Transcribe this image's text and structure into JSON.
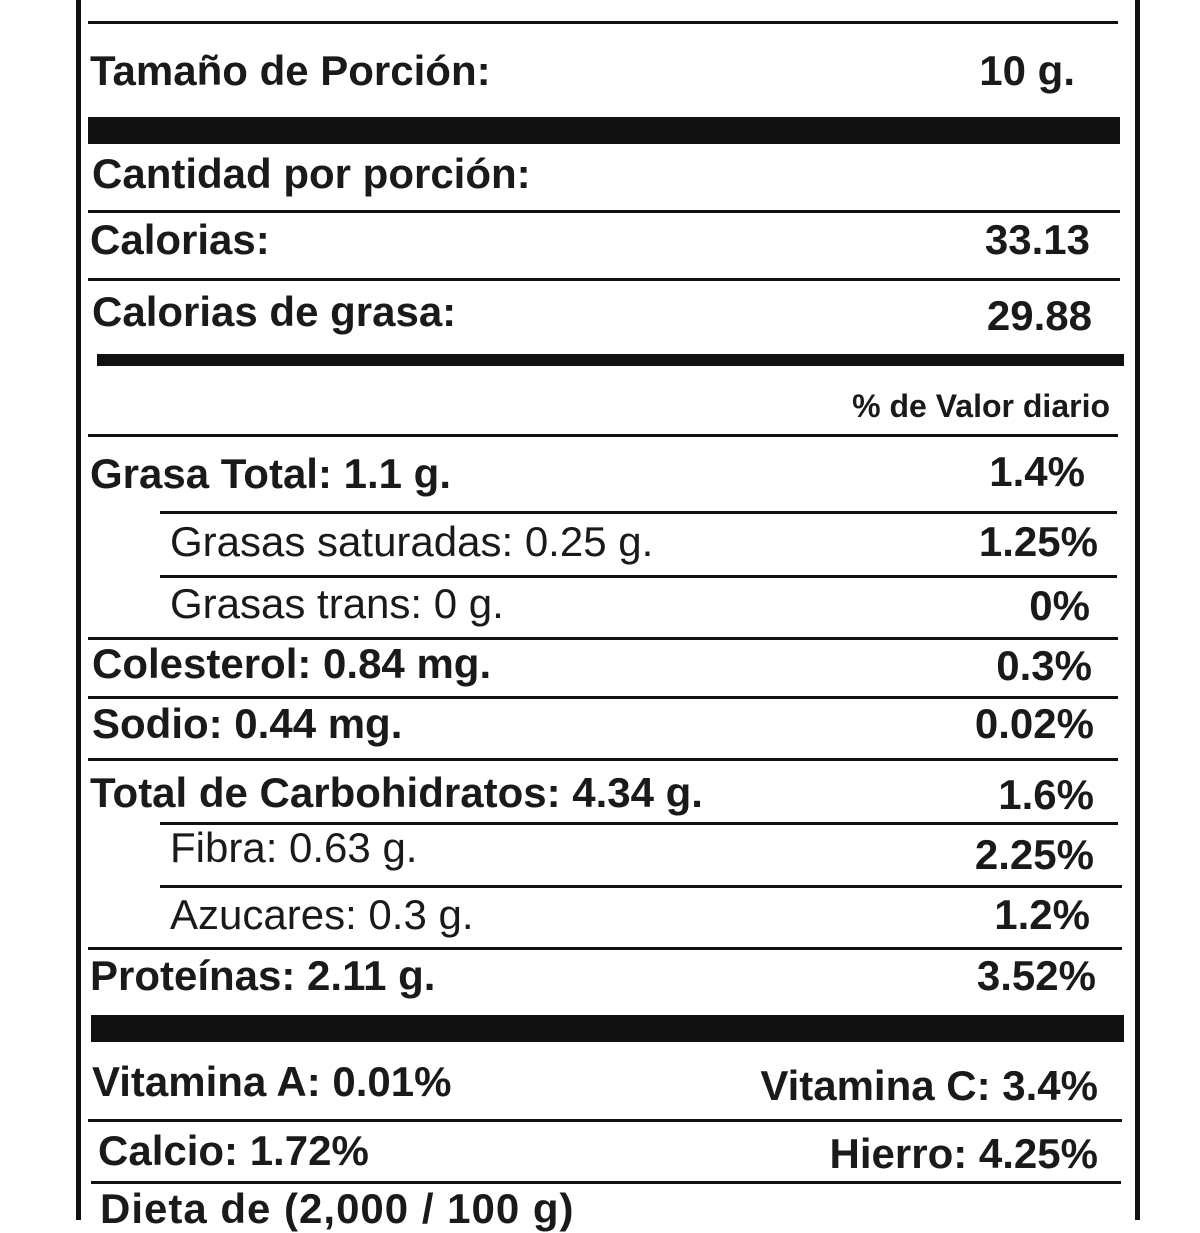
{
  "serving": {
    "label": "Tamaño de Porción:",
    "value": "10 g."
  },
  "amount_header": "Cantidad por porción:",
  "calories": {
    "label": "Calorias:",
    "value": "33.13"
  },
  "fat_calories": {
    "label": "Calorias de grasa:",
    "value": "29.88"
  },
  "dv_header": "% de Valor diario",
  "nutrients": {
    "total_fat": {
      "label": "Grasa Total: 1.1 g.",
      "dv": "1.4%"
    },
    "sat_fat": {
      "label": "Grasas saturadas: 0.25 g.",
      "dv": "1.25%"
    },
    "trans_fat": {
      "label": "Grasas trans: 0 g.",
      "dv": "0%"
    },
    "cholesterol": {
      "label": "Colesterol: 0.84 mg.",
      "dv": "0.3%"
    },
    "sodium": {
      "label": "Sodio: 0.44 mg.",
      "dv": "0.02%"
    },
    "carbs": {
      "label": "Total de Carbohidratos: 4.34 g.",
      "dv": "1.6%"
    },
    "fiber": {
      "label": "Fibra: 0.63 g.",
      "dv": "2.25%"
    },
    "sugars": {
      "label": "Azucares: 0.3 g.",
      "dv": "1.2%"
    },
    "protein": {
      "label": "Proteínas: 2.11 g.",
      "dv": "3.52%"
    }
  },
  "vitamins": {
    "vitamin_a": "Vitamina A: 0.01%",
    "vitamin_c": "Vitamina C: 3.4%",
    "calcium": "Calcio: 1.72%",
    "iron": "Hierro: 4.25%"
  },
  "clipped": {
    "top": "—",
    "bottom": "Dieta de (2,000 / 100 g)"
  }
}
